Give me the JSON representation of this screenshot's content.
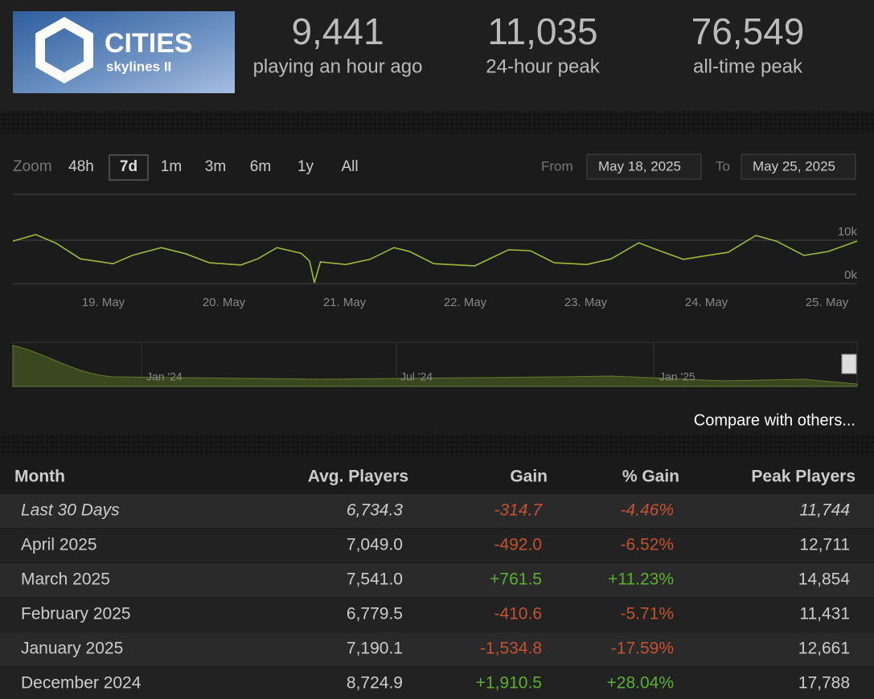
{
  "header": {
    "logo_title": "CITIES",
    "logo_subtitle": "skylines II",
    "stats": [
      {
        "value": "9,441",
        "label": "playing an hour ago"
      },
      {
        "value": "11,035",
        "label": "24-hour peak"
      },
      {
        "value": "76,549",
        "label": "all-time peak"
      }
    ]
  },
  "zoom": {
    "label": "Zoom",
    "options": [
      "48h",
      "7d",
      "1m",
      "3m",
      "6m",
      "1y",
      "All"
    ],
    "selected": 1
  },
  "range": {
    "from_label": "From",
    "from": "May 18, 2025",
    "to_label": "To",
    "to": "May 25, 2025"
  },
  "chart_data": {
    "type": "line",
    "color": "#9dbb3a",
    "x": [
      18.25,
      18.44,
      18.61,
      18.81,
      19.08,
      19.24,
      19.48,
      19.68,
      19.88,
      20.14,
      20.28,
      20.44,
      20.64,
      20.71,
      20.75,
      20.8,
      21.01,
      21.21,
      21.41,
      21.54,
      21.74,
      22.08,
      22.36,
      22.54,
      22.74,
      23.01,
      23.21,
      23.44,
      23.61,
      23.81,
      24.01,
      24.18,
      24.41,
      24.58,
      24.81,
      25.01,
      25.25
    ],
    "values": [
      9800,
      11300,
      9300,
      5700,
      4600,
      6500,
      8300,
      6900,
      4800,
      4300,
      5700,
      8300,
      7000,
      5200,
      200,
      5000,
      4400,
      5600,
      8300,
      7400,
      4600,
      4100,
      7800,
      7600,
      4800,
      4400,
      5700,
      9400,
      7600,
      5600,
      6500,
      7200,
      11100,
      9800,
      6500,
      7400,
      9800
    ],
    "xlim": [
      18.25,
      25.25
    ],
    "xticks": [
      {
        "value": 19,
        "label": "19. May"
      },
      {
        "value": 20,
        "label": "20. May"
      },
      {
        "value": 21,
        "label": "21. May"
      },
      {
        "value": 22,
        "label": "22. May"
      },
      {
        "value": 23,
        "label": "23. May"
      },
      {
        "value": 24,
        "label": "24. May"
      },
      {
        "value": 25,
        "label": "25. May"
      }
    ],
    "ylim": [
      0,
      20000
    ],
    "yticks": [
      {
        "value": 0,
        "label": "0k"
      },
      {
        "value": 10000,
        "label": "10k"
      }
    ],
    "grid": true
  },
  "navigator": {
    "labels": [
      "Jan '24",
      "Jul '24",
      "Jan '25"
    ]
  },
  "compare": "Compare with others...",
  "table": {
    "columns": [
      "Month",
      "Avg. Players",
      "Gain",
      "% Gain",
      "Peak Players"
    ],
    "rows": [
      [
        "Last 30 Days",
        "6,734.3",
        "-314.7",
        "-4.46%",
        "11,744"
      ],
      [
        "April 2025",
        "7,049.0",
        "-492.0",
        "-6.52%",
        "12,711"
      ],
      [
        "March 2025",
        "7,541.0",
        "+761.5",
        "+11.23%",
        "14,854"
      ],
      [
        "February 2025",
        "6,779.5",
        "-410.6",
        "-5.71%",
        "11,431"
      ],
      [
        "January 2025",
        "7,190.1",
        "-1,534.8",
        "-17.59%",
        "12,661"
      ],
      [
        "December 2024",
        "8,724.9",
        "+1,910.5",
        "+28.04%",
        "17,788"
      ]
    ]
  }
}
